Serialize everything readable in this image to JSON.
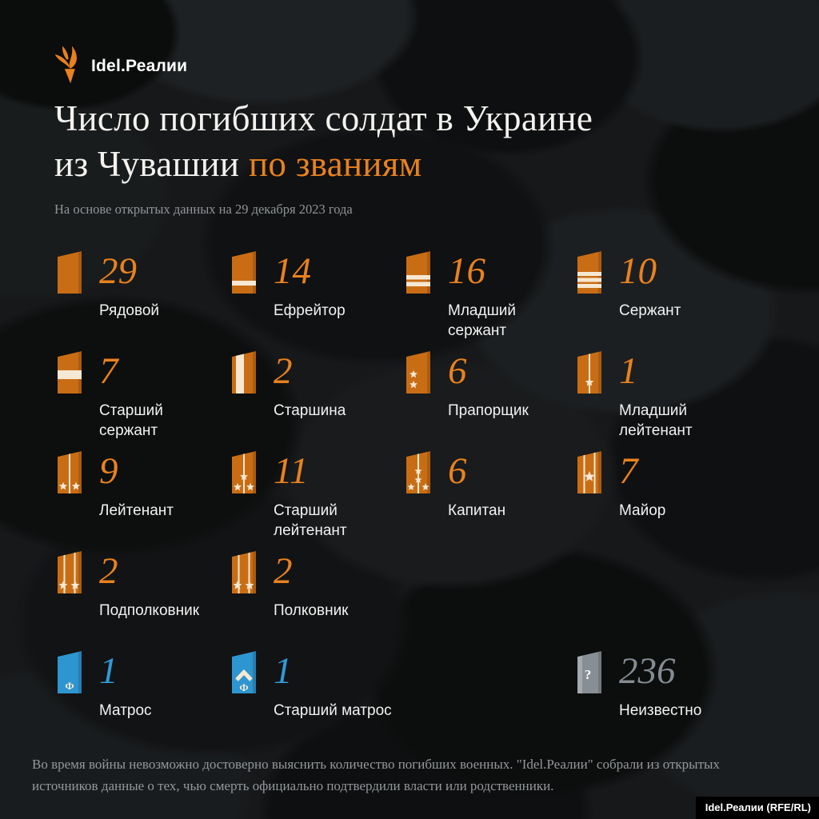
{
  "brand": {
    "logo_text": "Idel.Реалии",
    "credit_badge": "Idel.Реалии (RFE/RL)"
  },
  "header": {
    "title_line1": "Число погибших солдат в Украине",
    "title_line2_prefix": "из Чувашии",
    "title_line2_accent": "по званиям",
    "subtitle": "На основе открытых данных на 29 декабря 2023 года"
  },
  "footer": {
    "note": "Во время войны невозможно достоверно выяснить количество погибших военных. \"Idel.Реалии\" собрали из открытых источников данные о тех, чью смерть официально подтвердили власти или родственники."
  },
  "colors": {
    "accent_orange": "#e8821e",
    "strap_orange": "#c96d15",
    "stripe_cream": "#f6e8d2",
    "navy_blue_strap": "#2d95d0",
    "navy_blue_number": "#2f9ad6",
    "unknown_gray_strap": "#878e94",
    "unknown_gray_number": "#848c92",
    "background": "#17181a"
  },
  "chart_data": {
    "type": "pictogram",
    "title": "Число погибших солдат в Украине из Чувашии по званиям",
    "subtitle": "На основе открытых данных на 29 декабря 2023 года",
    "legend_position": "none",
    "categories": [
      "Рядовой",
      "Ефрейтор",
      "Младший сержант",
      "Сержант",
      "Старший сержант",
      "Старшина",
      "Прапорщик",
      "Младший лейтенант",
      "Лейтенант",
      "Старший лейтенант",
      "Капитан",
      "Майор",
      "Подполковник",
      "Полковник",
      "Матрос",
      "Старший матрос",
      "Неизвестно"
    ],
    "values": [
      29,
      14,
      16,
      10,
      7,
      2,
      6,
      1,
      9,
      11,
      6,
      7,
      2,
      2,
      1,
      1,
      236
    ],
    "items": [
      {
        "label": "Рядовой",
        "value": 29,
        "insignia": "plain",
        "color_group": "orange",
        "col": 1,
        "row": 1
      },
      {
        "label": "Ефрейтор",
        "value": 14,
        "insignia": "stripes1",
        "color_group": "orange",
        "col": 2,
        "row": 1
      },
      {
        "label": "Младший сержант",
        "value": 16,
        "insignia": "stripes2",
        "color_group": "orange",
        "col": 3,
        "row": 1
      },
      {
        "label": "Сержант",
        "value": 10,
        "insignia": "stripes3",
        "color_group": "orange",
        "col": 4,
        "row": 1
      },
      {
        "label": "Старший сержант",
        "value": 7,
        "insignia": "wide",
        "color_group": "orange",
        "col": 1,
        "row": 2
      },
      {
        "label": "Старшина",
        "value": 2,
        "insignia": "vertical",
        "color_group": "orange",
        "col": 2,
        "row": 2
      },
      {
        "label": "Прапорщик",
        "value": 6,
        "insignia": "stars2v",
        "color_group": "orange",
        "col": 3,
        "row": 2
      },
      {
        "label": "Младший лейтенант",
        "value": 1,
        "insignia": "line_star1",
        "color_group": "orange",
        "col": 4,
        "row": 2
      },
      {
        "label": "Лейтенант",
        "value": 9,
        "insignia": "line_stars2",
        "color_group": "orange",
        "col": 1,
        "row": 3
      },
      {
        "label": "Старший лейтенант",
        "value": 11,
        "insignia": "line_stars3",
        "color_group": "orange",
        "col": 2,
        "row": 3
      },
      {
        "label": "Капитан",
        "value": 6,
        "insignia": "line_stars4",
        "color_group": "orange",
        "col": 3,
        "row": 3
      },
      {
        "label": "Майор",
        "value": 7,
        "insignia": "lines2_star1",
        "color_group": "orange",
        "col": 4,
        "row": 3
      },
      {
        "label": "Подполковник",
        "value": 2,
        "insignia": "lines2_stars2",
        "color_group": "orange",
        "col": 1,
        "row": 4
      },
      {
        "label": "Полковник",
        "value": 2,
        "insignia": "lines2_stars2",
        "color_group": "orange",
        "col": 2,
        "row": 4
      },
      {
        "label": "Матрос",
        "value": 1,
        "insignia": "navy_f",
        "color_group": "blue",
        "col": 1,
        "row": 5
      },
      {
        "label": "Старший матрос",
        "value": 1,
        "insignia": "navy_chevron_f",
        "color_group": "blue",
        "col": 2,
        "row": 5
      },
      {
        "label": "Неизвестно",
        "value": 236,
        "insignia": "unknown",
        "color_group": "gray",
        "col": 4,
        "row": 5
      }
    ]
  }
}
